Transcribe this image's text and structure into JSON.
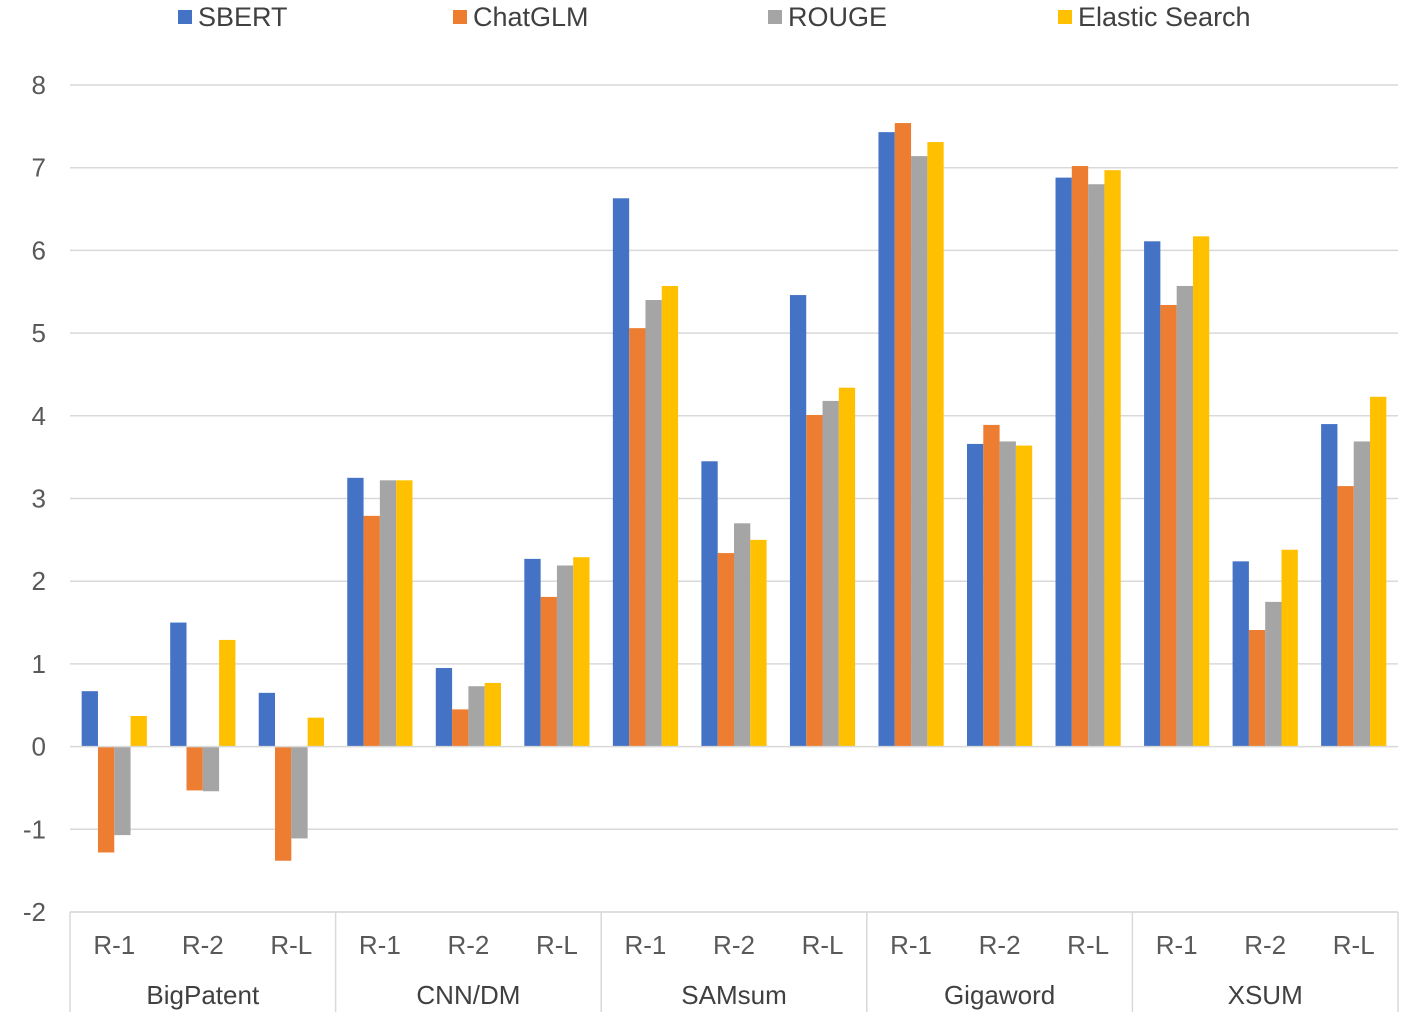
{
  "chart_data": {
    "type": "bar",
    "title": "",
    "xlabel": "",
    "ylabel": "",
    "ylim": [
      -2,
      8
    ],
    "yticks": [
      -2,
      -1,
      0,
      1,
      2,
      3,
      4,
      5,
      6,
      7,
      8
    ],
    "grid": true,
    "legend_position": "top",
    "groups": [
      {
        "name": "BigPatent",
        "categories": [
          "R-1",
          "R-2",
          "R-L"
        ]
      },
      {
        "name": "CNN/DM",
        "categories": [
          "R-1",
          "R-2",
          "R-L"
        ]
      },
      {
        "name": "SAMsum",
        "categories": [
          "R-1",
          "R-2",
          "R-L"
        ]
      },
      {
        "name": "Gigaword",
        "categories": [
          "R-1",
          "R-2",
          "R-L"
        ]
      },
      {
        "name": "XSUM",
        "categories": [
          "R-1",
          "R-2",
          "R-L"
        ]
      }
    ],
    "series": [
      {
        "name": "SBERT",
        "color": "#4472C4",
        "values": [
          0.67,
          1.5,
          0.65,
          3.25,
          0.95,
          2.27,
          6.63,
          3.45,
          5.46,
          7.43,
          3.66,
          6.88,
          6.11,
          2.24,
          3.9
        ]
      },
      {
        "name": "ChatGLM",
        "color": "#ED7D31",
        "values": [
          -1.28,
          -0.53,
          -1.38,
          2.79,
          0.45,
          1.81,
          5.06,
          2.34,
          4.01,
          7.54,
          3.89,
          7.02,
          5.34,
          1.41,
          3.15
        ]
      },
      {
        "name": "ROUGE",
        "color": "#A5A5A5",
        "values": [
          -1.07,
          -0.54,
          -1.11,
          3.22,
          0.73,
          2.19,
          5.4,
          2.7,
          4.18,
          7.14,
          3.69,
          6.8,
          5.57,
          1.75,
          3.69
        ]
      },
      {
        "name": "Elastic Search",
        "color": "#FFC000",
        "values": [
          0.37,
          1.29,
          0.35,
          3.22,
          0.77,
          2.29,
          5.57,
          2.5,
          4.34,
          7.31,
          3.64,
          6.97,
          6.17,
          2.38,
          4.23
        ]
      }
    ]
  }
}
